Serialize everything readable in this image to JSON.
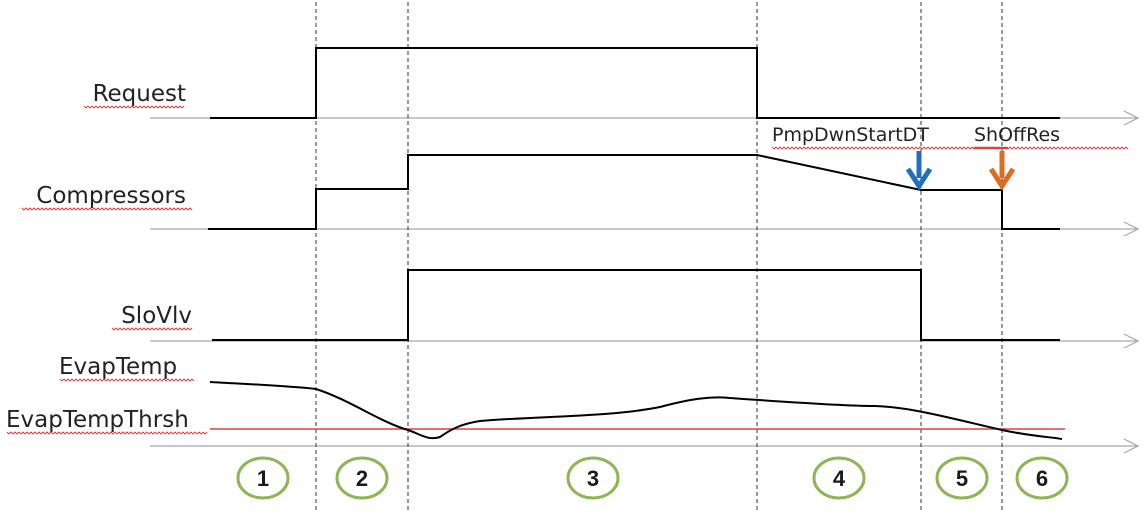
{
  "signals": {
    "request": "Request",
    "compressors": "Compressors",
    "slovlv": "SloVlv",
    "evap_temp": "EvapTemp",
    "evap_temp_thrsh": "EvapTempThrsh"
  },
  "annotations": {
    "pump_down_start": "PmpDwnStartDT",
    "shut_off_res": "ShOffRes"
  },
  "phases": [
    "1",
    "2",
    "3",
    "4",
    "5",
    "6"
  ],
  "colors": {
    "phase_circle": "#8db554",
    "threshold_line": "#d64545",
    "pump_down_arrow": "#1f6fbf",
    "shut_off_arrow": "#e06b1f",
    "axis": "#a8a8a8",
    "signal": "#000000"
  }
}
